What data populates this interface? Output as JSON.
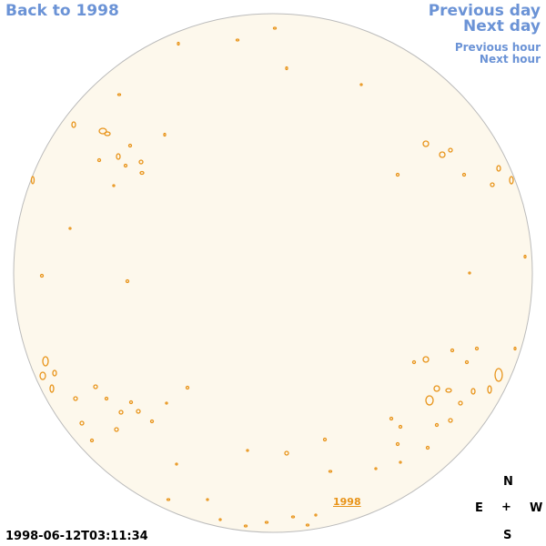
{
  "nav": {
    "back_label": "Back to 1998",
    "prev_day_label": "Previous day",
    "next_day_label": "Next day",
    "prev_hour_label": "Previous hour",
    "next_hour_label": "Next hour"
  },
  "timestamp": "1998-06-12T03:11:34",
  "year_label": "1998",
  "compass": {
    "north": "N",
    "south": "S",
    "east": "E",
    "west": "W",
    "center": "+"
  },
  "colors": {
    "link": "#6b93d6",
    "disk_fill": "#fdf8ec",
    "disk_stroke": "#bbbbbb",
    "contour": "#e8941a"
  }
}
